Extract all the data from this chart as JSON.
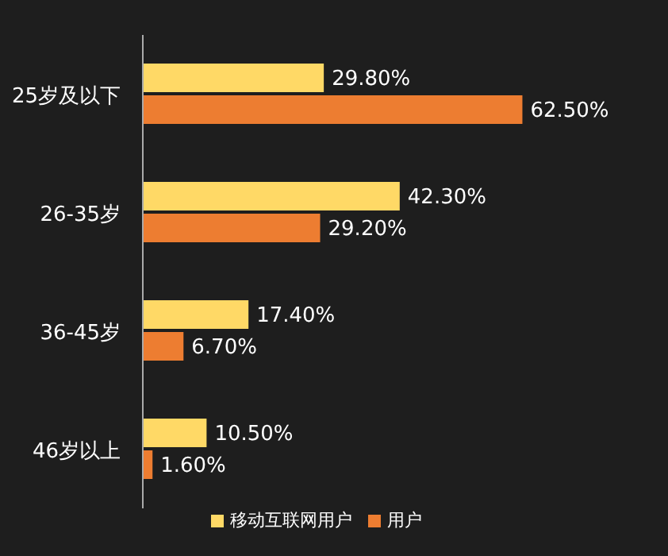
{
  "chart_data": {
    "type": "bar",
    "orientation": "horizontal",
    "tick_labels": "y",
    "categories": [
      "25岁及以下",
      "26-35岁",
      "36-45岁",
      "46岁以上"
    ],
    "series": [
      {
        "name": "移动互联网用户",
        "color": "#ffd966",
        "values": [
          29.8,
          42.3,
          17.4,
          10.5
        ],
        "value_labels": [
          "29.80%",
          "42.30%",
          "17.40%",
          "10.50%"
        ]
      },
      {
        "name": "用户",
        "color": "#ed7d31",
        "values": [
          62.5,
          29.2,
          6.7,
          1.6
        ],
        "value_labels": [
          "62.50%",
          "29.20%",
          "6.70%",
          "1.60%"
        ]
      }
    ],
    "legend": "bottom",
    "grid": false
  }
}
